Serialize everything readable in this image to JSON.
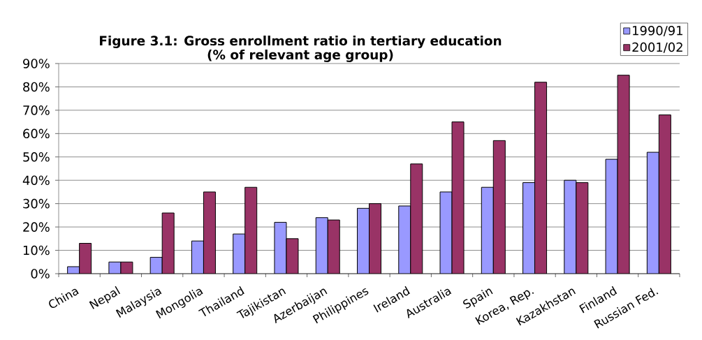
{
  "chart_data": {
    "type": "bar",
    "title": "Figure 3.1: Gross enrollment ratio in tertiary education",
    "subtitle": "(% of relevant age group)",
    "categories": [
      "China",
      "Nepal",
      "Malaysia",
      "Mongolia",
      "Thailand",
      "Tajikistan",
      "Azerbaijan",
      "Philippines",
      "Ireland",
      "Australia",
      "Spain",
      "Korea, Rep.",
      "Kazakhstan",
      "Finland",
      "Russian Fed."
    ],
    "series": [
      {
        "name": "1990/91",
        "color": "#9999ff",
        "values": [
          3,
          5,
          7,
          14,
          17,
          22,
          24,
          28,
          29,
          35,
          37,
          39,
          40,
          49,
          52
        ]
      },
      {
        "name": "2001/02",
        "color": "#993366",
        "values": [
          13,
          5,
          26,
          35,
          37,
          15,
          23,
          30,
          47,
          65,
          57,
          82,
          39,
          85,
          68
        ]
      }
    ],
    "ylim": [
      0,
      90
    ],
    "yticks": [
      {
        "value": 0,
        "label": "0%"
      },
      {
        "value": 10,
        "label": "10%"
      },
      {
        "value": 20,
        "label": "20%"
      },
      {
        "value": 30,
        "label": "30%"
      },
      {
        "value": 40,
        "label": "40%"
      },
      {
        "value": 50,
        "label": "50%"
      },
      {
        "value": 60,
        "label": "60%"
      },
      {
        "value": 70,
        "label": "70%"
      },
      {
        "value": 80,
        "label": "80%"
      },
      {
        "value": 90,
        "label": "90%"
      }
    ],
    "grid": "y",
    "legend": "top right"
  }
}
